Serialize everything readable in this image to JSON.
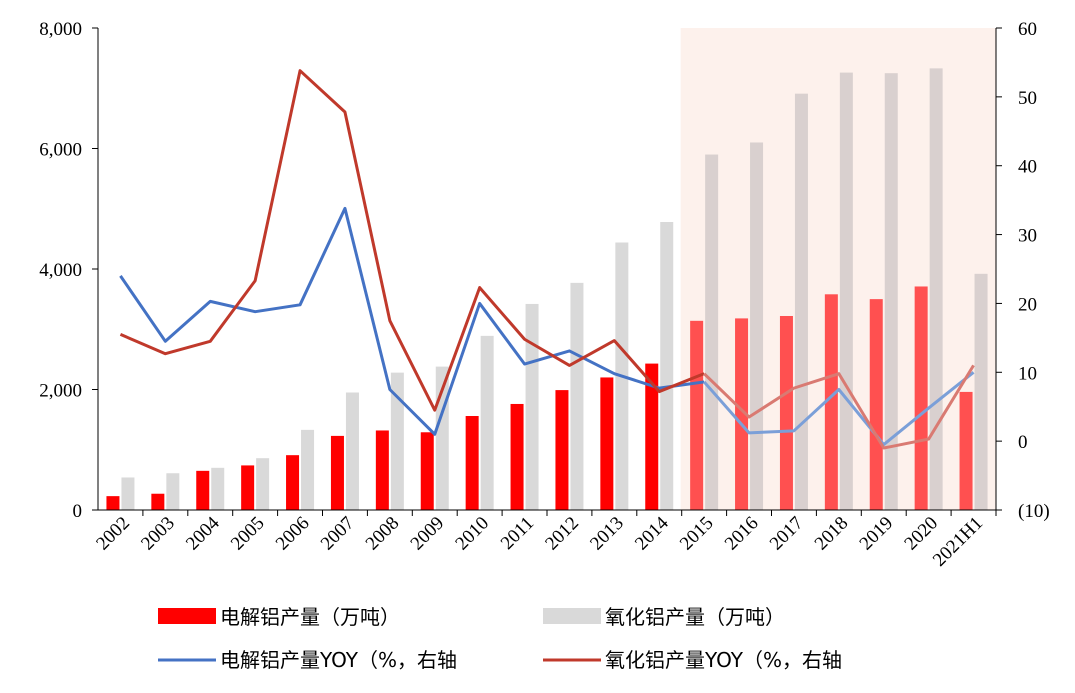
{
  "chart_data": {
    "type": "bar",
    "categories": [
      "2002",
      "2003",
      "2004",
      "2005",
      "2006",
      "2007",
      "2008",
      "2009",
      "2010",
      "2011",
      "2012",
      "2013",
      "2014",
      "2015",
      "2016",
      "2017",
      "2018",
      "2019",
      "2020",
      "2021H1"
    ],
    "highlight_from_category": "2015",
    "series": [
      {
        "name": "电解铝产量（万吨）",
        "type": "bar",
        "axis": "left",
        "color": "#ff0000",
        "highlight_color": "#ff5050",
        "values": [
          230,
          270,
          650,
          740,
          910,
          1230,
          1320,
          1290,
          1560,
          1760,
          1990,
          2200,
          2430,
          3140,
          3180,
          3220,
          3580,
          3500,
          3710,
          1960
        ]
      },
      {
        "name": "氧化铝产量（万吨）",
        "type": "bar",
        "axis": "left",
        "color": "#d9d9d9",
        "highlight_color": "#d9d0cf",
        "values": [
          540,
          610,
          700,
          860,
          1330,
          1950,
          2280,
          2380,
          2890,
          3420,
          3770,
          4440,
          4780,
          5900,
          6100,
          6910,
          7260,
          7250,
          7330,
          3920
        ]
      },
      {
        "name": "电解铝产量YOY（%，右轴",
        "type": "line",
        "axis": "right",
        "color": "#4472c4",
        "highlight_color": "#7b9fd8",
        "values": [
          24,
          14.5,
          20.3,
          18.8,
          19.8,
          33.8,
          7.5,
          1,
          20,
          11.2,
          13.1,
          9.8,
          7.7,
          8.6,
          1.2,
          1.5,
          7.5,
          -0.5,
          4.8,
          10
        ]
      },
      {
        "name": "氧化铝产量YOY（%，右轴",
        "type": "line",
        "axis": "right",
        "color": "#c0392b",
        "highlight_color": "#d97a72",
        "values": [
          15.5,
          12.7,
          14.5,
          23.3,
          53.8,
          47.8,
          17.5,
          4.5,
          22.3,
          14.8,
          11,
          14.6,
          7.2,
          9.8,
          3.5,
          7.7,
          9.8,
          -1,
          0.3,
          11
        ]
      }
    ],
    "y_left": {
      "min": 0,
      "max": 8000,
      "ticks": [
        "0",
        "2,000",
        "4,000",
        "6,000",
        "8,000"
      ]
    },
    "y_right": {
      "min": -10,
      "max": 60,
      "ticks": [
        "(10)",
        "0",
        "10",
        "20",
        "30",
        "40",
        "50",
        "60"
      ],
      "negative_tick_color": "#ff0000"
    },
    "highlight_band_color": "#fdf1ec",
    "legend_placement": "bottom",
    "grid": false
  }
}
